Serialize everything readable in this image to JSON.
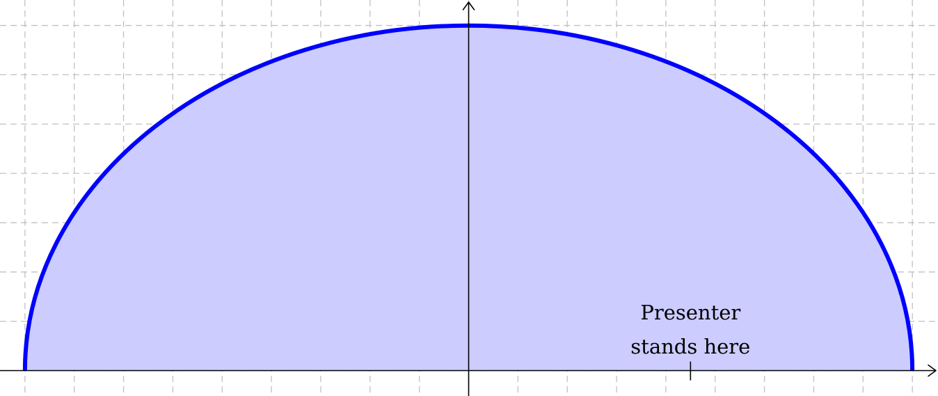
{
  "colors": {
    "region_fill": "#ccccff",
    "boundary_stroke": "#0000ff",
    "grid": "#c0c0c0",
    "axes": "#000000"
  },
  "region": {
    "shape": "half-ellipse",
    "semi_axis_x": 9,
    "semi_axis_y": 7
  },
  "grid": {
    "x_range": [
      -9.5,
      9.5
    ],
    "y_range": [
      -0.5,
      7.5
    ],
    "spacing": 1
  },
  "annotation": {
    "line1": "Presenter",
    "line2": "stands here",
    "x": 4.5,
    "y": 0
  }
}
